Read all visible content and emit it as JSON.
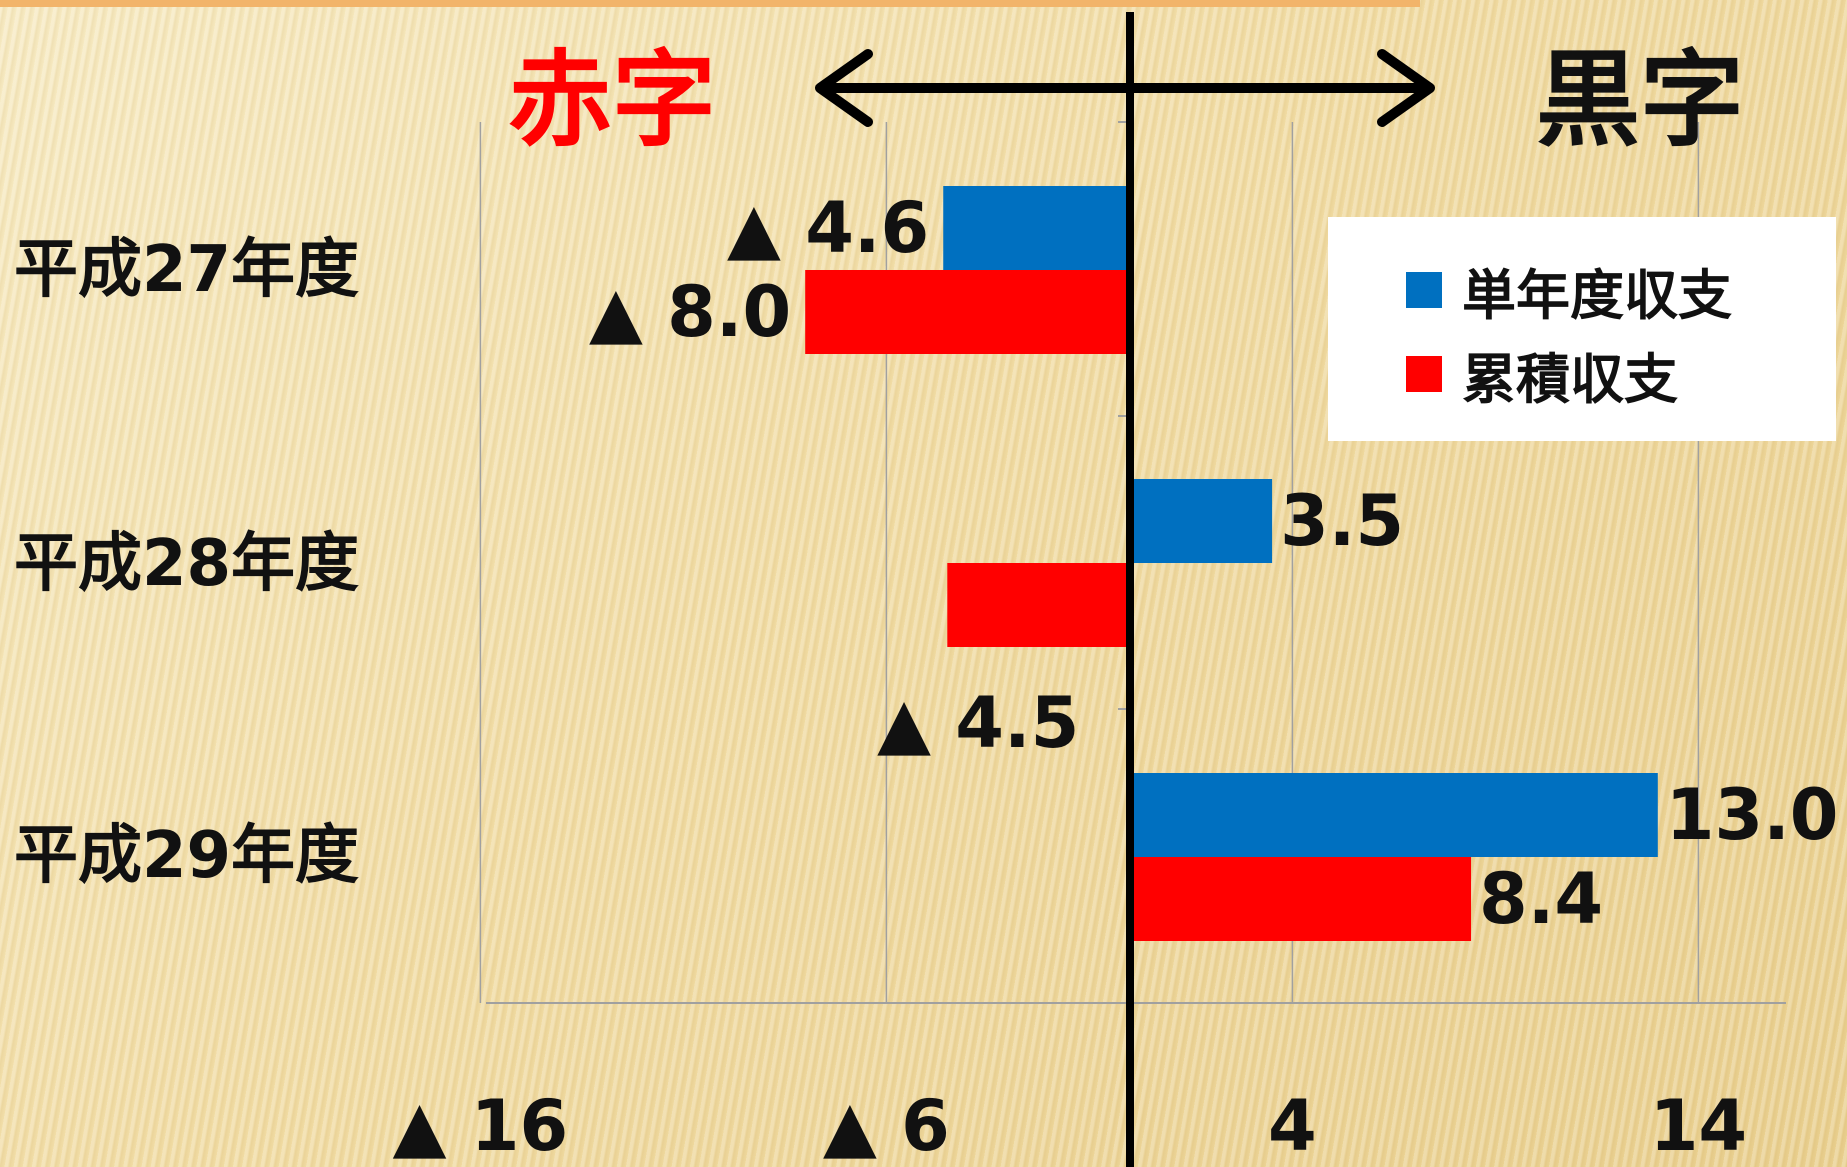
{
  "labels": {
    "deficit": "赤字",
    "surplus": "黒字"
  },
  "colors": {
    "deficit_label": "#ff0000",
    "surplus_label": "#111111",
    "series_single_year": "#0070c0",
    "series_cumulative": "#ff0000"
  },
  "legend": {
    "items": [
      {
        "label": "単年度収支",
        "color": "#0070c0"
      },
      {
        "label": "累積収支",
        "color": "#ff0000"
      }
    ]
  },
  "chart_data": {
    "type": "bar",
    "orientation": "horizontal",
    "categories": [
      "平成27年度",
      "平成28年度",
      "平成29年度"
    ],
    "series": [
      {
        "name": "単年度収支",
        "values": [
          -4.6,
          3.5,
          13.0
        ],
        "labels": [
          "▲ 4.6",
          "3.5",
          "13.0"
        ]
      },
      {
        "name": "累積収支",
        "values": [
          -8.0,
          -4.5,
          8.4
        ],
        "labels": [
          "▲ 8.0",
          "▲ 4.5",
          "8.4"
        ]
      }
    ],
    "x_ticks": [
      {
        "value": -16,
        "label": "▲ 16"
      },
      {
        "value": -6,
        "label": "▲ 6"
      },
      {
        "value": 4,
        "label": "4"
      },
      {
        "value": 14,
        "label": "14"
      }
    ],
    "xlim": [
      -16,
      16
    ],
    "grid": true,
    "legend_position": "top-right"
  }
}
